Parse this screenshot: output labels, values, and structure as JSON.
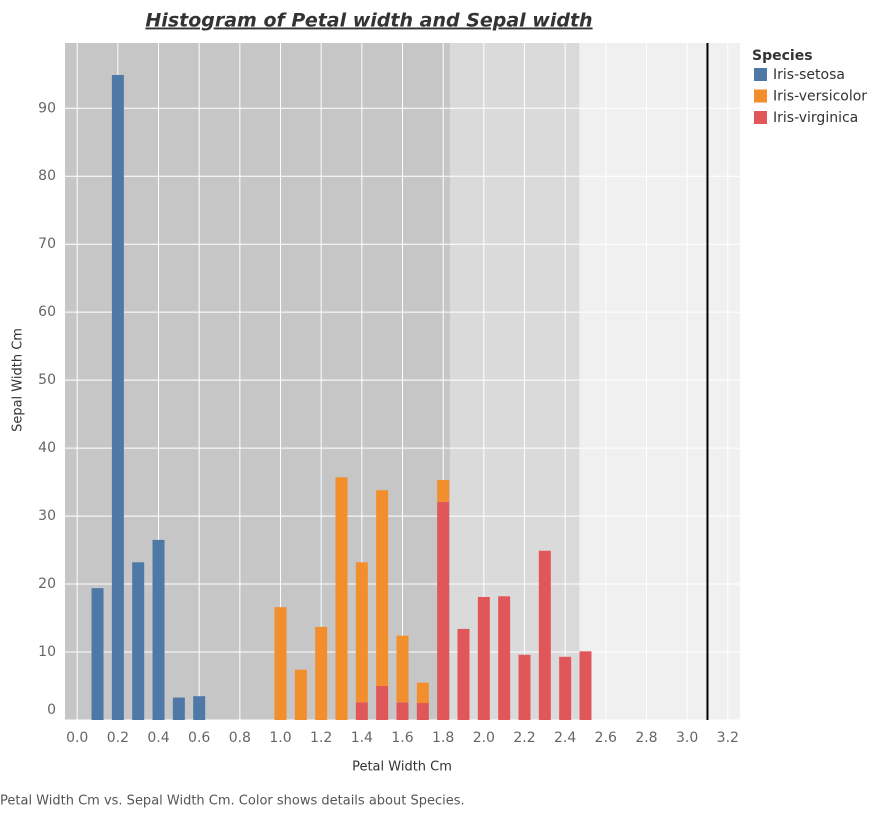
{
  "chart_data": {
    "type": "stacked_bar",
    "title": "Histogram of Petal width and Sepal width",
    "x_label": "Petal Width Cm",
    "y_label": "Sepal Width Cm",
    "caption": "Petal Width Cm vs. Sepal Width Cm.  Color shows details about Species.",
    "legend_title": "Species",
    "legend_position": "right",
    "x": [
      0.1,
      0.2,
      0.3,
      0.4,
      0.5,
      0.6,
      0.7,
      0.8,
      0.9,
      1.0,
      1.1,
      1.2,
      1.3,
      1.4,
      1.5,
      1.6,
      1.7,
      1.8,
      1.9,
      2.0,
      2.1,
      2.2,
      2.3,
      2.4,
      2.5
    ],
    "series": [
      {
        "name": "Iris-setosa",
        "color": "#4e79a7",
        "values": [
          19.4,
          94.9,
          23.2,
          26.5,
          3.3,
          3.5,
          null,
          null,
          null,
          null,
          null,
          null,
          null,
          null,
          null,
          null,
          null,
          null,
          null,
          null,
          null,
          null,
          null,
          null,
          null
        ]
      },
      {
        "name": "Iris-versicolor",
        "color": "#f28e2b",
        "values": [
          null,
          null,
          null,
          null,
          null,
          null,
          null,
          null,
          null,
          16.6,
          7.4,
          13.7,
          35.7,
          20.6,
          28.8,
          9.8,
          3.0,
          3.2,
          null,
          null,
          null,
          null,
          null,
          null,
          null
        ]
      },
      {
        "name": "Iris-virginica",
        "color": "#e15759",
        "values": [
          null,
          null,
          null,
          null,
          null,
          null,
          null,
          null,
          null,
          null,
          null,
          null,
          null,
          2.6,
          5.0,
          2.6,
          2.5,
          32.1,
          13.4,
          18.1,
          18.2,
          9.6,
          24.9,
          9.3,
          10.1
        ]
      }
    ],
    "xlim": [
      -0.06,
      3.26
    ],
    "ylim": [
      0,
      99.6
    ],
    "xticks": [
      {
        "value": 0,
        "label": "0.0"
      },
      0.2,
      0.4,
      0.6,
      0.8,
      {
        "value": 1,
        "label": "1.0"
      },
      1.2,
      1.4,
      1.6,
      1.8,
      {
        "value": 2,
        "label": "2.0"
      },
      2.2,
      2.4,
      2.6,
      2.8,
      {
        "value": 3,
        "label": "3.0"
      },
      3.2
    ],
    "yticks": [
      0,
      10,
      20,
      30,
      40,
      50,
      60,
      70,
      80,
      90
    ],
    "grid": true,
    "background_color": "#f0f0f0",
    "bands": [
      {
        "to": 1.835,
        "color": "#c6c6c6"
      },
      {
        "to": 2.47,
        "color": "#dadada"
      }
    ],
    "reference_line": 3.1
  }
}
